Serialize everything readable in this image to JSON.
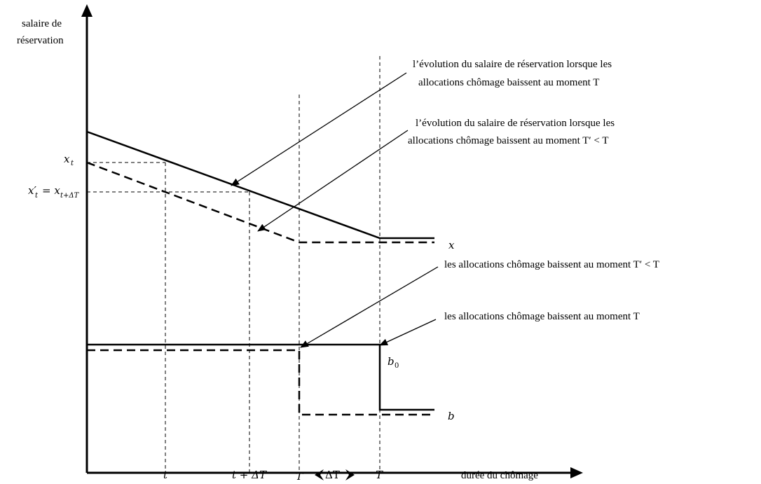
{
  "axes": {
    "y_label_line1": "salaire de",
    "y_label_line2": "réservation",
    "x_label": "durée du chômage"
  },
  "x_ticks": {
    "t": "t",
    "t_plus_dT": "t + ΔT",
    "T_prime": "T′",
    "delta_T_span": "ΔT",
    "T": "T"
  },
  "y_ticks": {
    "x_t": "x",
    "x_t_sub": "t",
    "x_t_prime": "x′",
    "x_t_prime_sub": "t",
    "x_t_prime_eq": "= x",
    "x_t_prime_eq_sub": "t+ΔT"
  },
  "curve_labels": {
    "x": "x",
    "b0": "b",
    "b0_sub": "0",
    "b": "b"
  },
  "annotations": {
    "a1_line1": "l’évolution du salaire de réservation lorsque les",
    "a1_line2": "allocations chômage baissent au moment T",
    "a2_line1": "l’évolution du salaire de réservation lorsque les",
    "a2_line2": "allocations chômage baissent au moment T′ < T",
    "a3": "les allocations chômage baissent au moment T′ < T",
    "a4": "les allocations chômage baissent au moment T"
  }
}
